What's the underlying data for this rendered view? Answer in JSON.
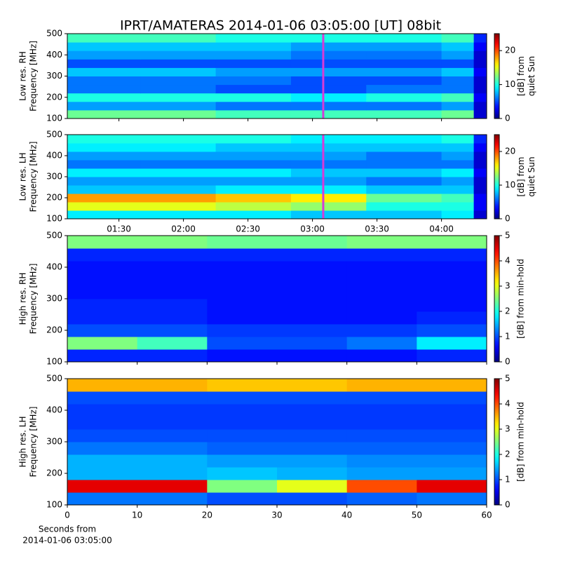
{
  "title": "IPRT/AMATERAS 2014-01-06 03:05:00 [UT]   08bit",
  "x_caption": [
    "Seconds from",
    "2014-01-06 03:05:00"
  ],
  "chart_data": [
    {
      "type": "heatmap",
      "ylabel": [
        "Low res. RH",
        "Frequency [MHz]"
      ],
      "colorbar_label": [
        "[dB] from",
        "quiet Sun"
      ],
      "colormap": "jet",
      "clim": [
        0,
        25
      ],
      "cticks": [
        0,
        10,
        20
      ],
      "xlim": [
        66,
        261
      ],
      "xticks": [
        90,
        120,
        150,
        180,
        210,
        240
      ],
      "xticklabels": false,
      "ylim": [
        100,
        500
      ],
      "yticks": [
        100,
        200,
        300,
        400,
        500
      ],
      "marker_x": 185,
      "marker_color": "#d63cd6",
      "x_edges": [
        66,
        100,
        135,
        170,
        205,
        240,
        255,
        261
      ],
      "y_edges": [
        100,
        140,
        180,
        220,
        260,
        300,
        340,
        380,
        420,
        460,
        500
      ],
      "z": [
        [
          12,
          12,
          11,
          11,
          11,
          12,
          2
        ],
        [
          7,
          7,
          6,
          6,
          6,
          7,
          2
        ],
        [
          10,
          10,
          10,
          9,
          10,
          11,
          3
        ],
        [
          6,
          6,
          5,
          5,
          6,
          6,
          2
        ],
        [
          6,
          6,
          6,
          5,
          5,
          6,
          2
        ],
        [
          8,
          8,
          7,
          7,
          7,
          8,
          3
        ],
        [
          5,
          5,
          5,
          5,
          5,
          5,
          2
        ],
        [
          7,
          7,
          7,
          6,
          6,
          7,
          2
        ],
        [
          8,
          8,
          8,
          7,
          7,
          8,
          3
        ],
        [
          11,
          11,
          10,
          10,
          10,
          11,
          4
        ]
      ]
    },
    {
      "type": "heatmap",
      "ylabel": [
        "Low res. LH",
        "Frequency [MHz]"
      ],
      "colorbar_label": [
        "[dB] from",
        "quiet Sun"
      ],
      "colormap": "jet",
      "clim": [
        0,
        25
      ],
      "cticks": [
        0,
        10,
        20
      ],
      "xlim": [
        66,
        261
      ],
      "xticks": [
        {
          "value": 90,
          "label": "01:30"
        },
        {
          "value": 120,
          "label": "02:00"
        },
        {
          "value": 150,
          "label": "02:30"
        },
        {
          "value": 180,
          "label": "03:00"
        },
        {
          "value": 210,
          "label": "03:30"
        },
        {
          "value": 240,
          "label": "04:00"
        }
      ],
      "xticklabels": true,
      "ylim": [
        100,
        500
      ],
      "yticks": [
        100,
        200,
        300,
        400,
        500
      ],
      "marker_x": 185,
      "marker_color": "#d63cd6",
      "x_edges": [
        66,
        100,
        135,
        170,
        205,
        240,
        255,
        261
      ],
      "y_edges": [
        100,
        140,
        180,
        220,
        260,
        300,
        340,
        380,
        420,
        460,
        500
      ],
      "z": [
        [
          9,
          9,
          9,
          8,
          8,
          9,
          2
        ],
        [
          15,
          15,
          14,
          13,
          10,
          10,
          3
        ],
        [
          18,
          18,
          17,
          16,
          12,
          11,
          3
        ],
        [
          8,
          8,
          9,
          9,
          8,
          8,
          2
        ],
        [
          7,
          7,
          7,
          7,
          6,
          7,
          2
        ],
        [
          9,
          9,
          9,
          8,
          8,
          9,
          3
        ],
        [
          6,
          6,
          6,
          6,
          6,
          6,
          2
        ],
        [
          7,
          7,
          7,
          7,
          6,
          7,
          2
        ],
        [
          9,
          9,
          8,
          8,
          8,
          8,
          3
        ],
        [
          10,
          10,
          10,
          9,
          9,
          10,
          4
        ]
      ]
    },
    {
      "type": "heatmap",
      "ylabel": [
        "High res. RH",
        "Frequency [MHz]"
      ],
      "colorbar_label": [
        "[dB] from min-hold"
      ],
      "colormap": "jet",
      "clim": [
        0,
        5
      ],
      "cticks": [
        0,
        1,
        2,
        3,
        4,
        5
      ],
      "xlim": [
        0,
        60
      ],
      "xticks": [
        0,
        10,
        20,
        30,
        40,
        50,
        60
      ],
      "xticklabels": false,
      "ylim": [
        100,
        500
      ],
      "yticks": [
        100,
        200,
        300,
        400,
        500
      ],
      "x_edges": [
        0,
        10,
        20,
        30,
        40,
        50,
        60
      ],
      "y_edges": [
        100,
        140,
        180,
        220,
        260,
        300,
        340,
        380,
        420,
        460,
        500
      ],
      "z": [
        [
          0.8,
          0.8,
          0.7,
          0.7,
          0.7,
          0.8
        ],
        [
          2.5,
          2.2,
          1.0,
          1.0,
          1.2,
          1.8
        ],
        [
          1.0,
          1.0,
          0.9,
          0.9,
          0.9,
          1.0
        ],
        [
          0.8,
          0.8,
          0.7,
          0.7,
          0.7,
          0.8
        ],
        [
          0.8,
          0.8,
          0.7,
          0.7,
          0.7,
          0.7
        ],
        [
          0.7,
          0.7,
          0.7,
          0.7,
          0.7,
          0.7
        ],
        [
          0.7,
          0.7,
          0.7,
          0.7,
          0.7,
          0.7
        ],
        [
          0.7,
          0.7,
          0.7,
          0.7,
          0.7,
          0.7
        ],
        [
          0.8,
          0.8,
          0.8,
          0.8,
          0.8,
          0.8
        ],
        [
          2.5,
          2.5,
          2.4,
          2.4,
          2.5,
          2.5
        ]
      ]
    },
    {
      "type": "heatmap",
      "ylabel": [
        "High res. LH",
        "Frequency [MHz]"
      ],
      "colorbar_label": [
        "[dB] from min-hold"
      ],
      "colormap": "jet",
      "clim": [
        0,
        5
      ],
      "cticks": [
        0,
        1,
        2,
        3,
        4,
        5
      ],
      "xlim": [
        0,
        60
      ],
      "xticks": [
        0,
        10,
        20,
        30,
        40,
        50,
        60
      ],
      "xticklabels": true,
      "ylim": [
        100,
        500
      ],
      "yticks": [
        100,
        200,
        300,
        400,
        500
      ],
      "x_edges": [
        0,
        10,
        20,
        30,
        40,
        50,
        60
      ],
      "y_edges": [
        100,
        140,
        180,
        220,
        260,
        300,
        340,
        380,
        420,
        460,
        500
      ],
      "z": [
        [
          1.2,
          1.2,
          1.0,
          1.0,
          1.1,
          1.2
        ],
        [
          4.5,
          4.5,
          2.5,
          3.0,
          4.0,
          4.5
        ],
        [
          1.5,
          1.5,
          1.6,
          1.5,
          1.4,
          1.4
        ],
        [
          1.5,
          1.5,
          1.4,
          1.4,
          1.3,
          1.3
        ],
        [
          1.2,
          1.2,
          1.1,
          1.1,
          1.1,
          1.1
        ],
        [
          1.0,
          1.0,
          1.0,
          1.0,
          1.0,
          1.0
        ],
        [
          0.9,
          0.9,
          0.9,
          0.9,
          0.9,
          0.9
        ],
        [
          0.9,
          0.9,
          0.9,
          0.9,
          0.9,
          0.9
        ],
        [
          1.0,
          1.0,
          1.0,
          1.0,
          1.0,
          1.0
        ],
        [
          3.5,
          3.5,
          3.4,
          3.4,
          3.5,
          3.5
        ]
      ]
    }
  ]
}
